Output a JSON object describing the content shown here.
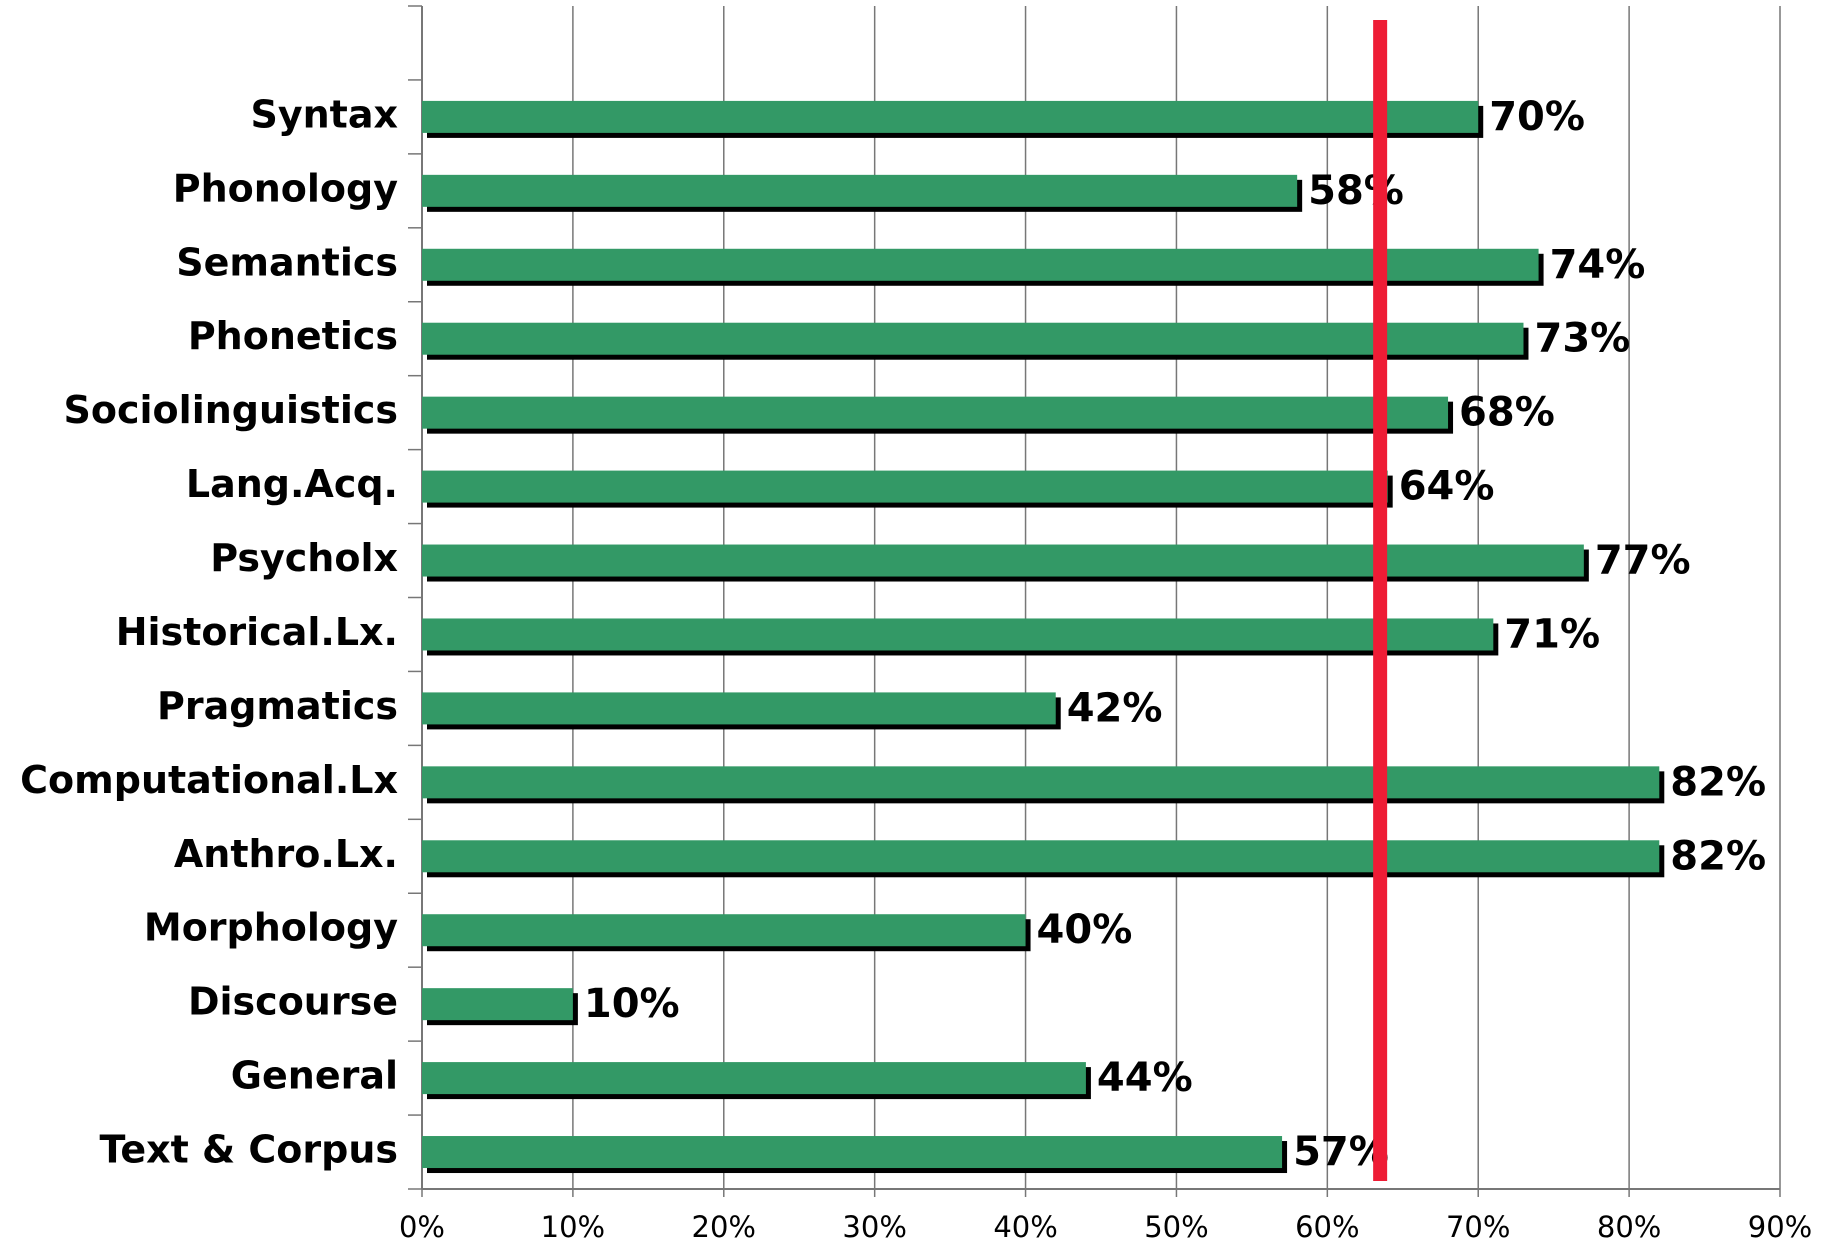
{
  "chart_data": {
    "type": "hbar",
    "categories": [
      "Syntax",
      "Phonology",
      "Semantics",
      "Phonetics",
      "Sociolinguistics",
      "Lang.Acq.",
      "Psycholx",
      "Historical.Lx.",
      "Pragmatics",
      "Computational.Lx",
      "Anthro.Lx.",
      "Morphology",
      "Discourse",
      "General",
      "Text & Corpus"
    ],
    "values": [
      70,
      58,
      74,
      73,
      68,
      64,
      77,
      71,
      42,
      82,
      82,
      40,
      10,
      44,
      57
    ],
    "value_labels": [
      "70%",
      "58%",
      "74%",
      "73%",
      "68%",
      "64%",
      "77%",
      "71%",
      "42%",
      "82%",
      "82%",
      "40%",
      "10%",
      "44%",
      "57%"
    ],
    "color": "#339966",
    "shadow_color": "#000000",
    "xlim": [
      0,
      90
    ],
    "xticks": [
      {
        "value": 0,
        "label": "0%"
      },
      {
        "value": 10,
        "label": "10%"
      },
      {
        "value": 20,
        "label": "20%"
      },
      {
        "value": 30,
        "label": "30%"
      },
      {
        "value": 40,
        "label": "40%"
      },
      {
        "value": 50,
        "label": "50%"
      },
      {
        "value": 60,
        "label": "60%"
      },
      {
        "value": 70,
        "label": "70%"
      },
      {
        "value": 80,
        "label": "80%"
      },
      {
        "value": 90,
        "label": "90%"
      }
    ],
    "grid": true,
    "reference_line": {
      "value": 63.5,
      "color": "#ee1c35"
    }
  }
}
